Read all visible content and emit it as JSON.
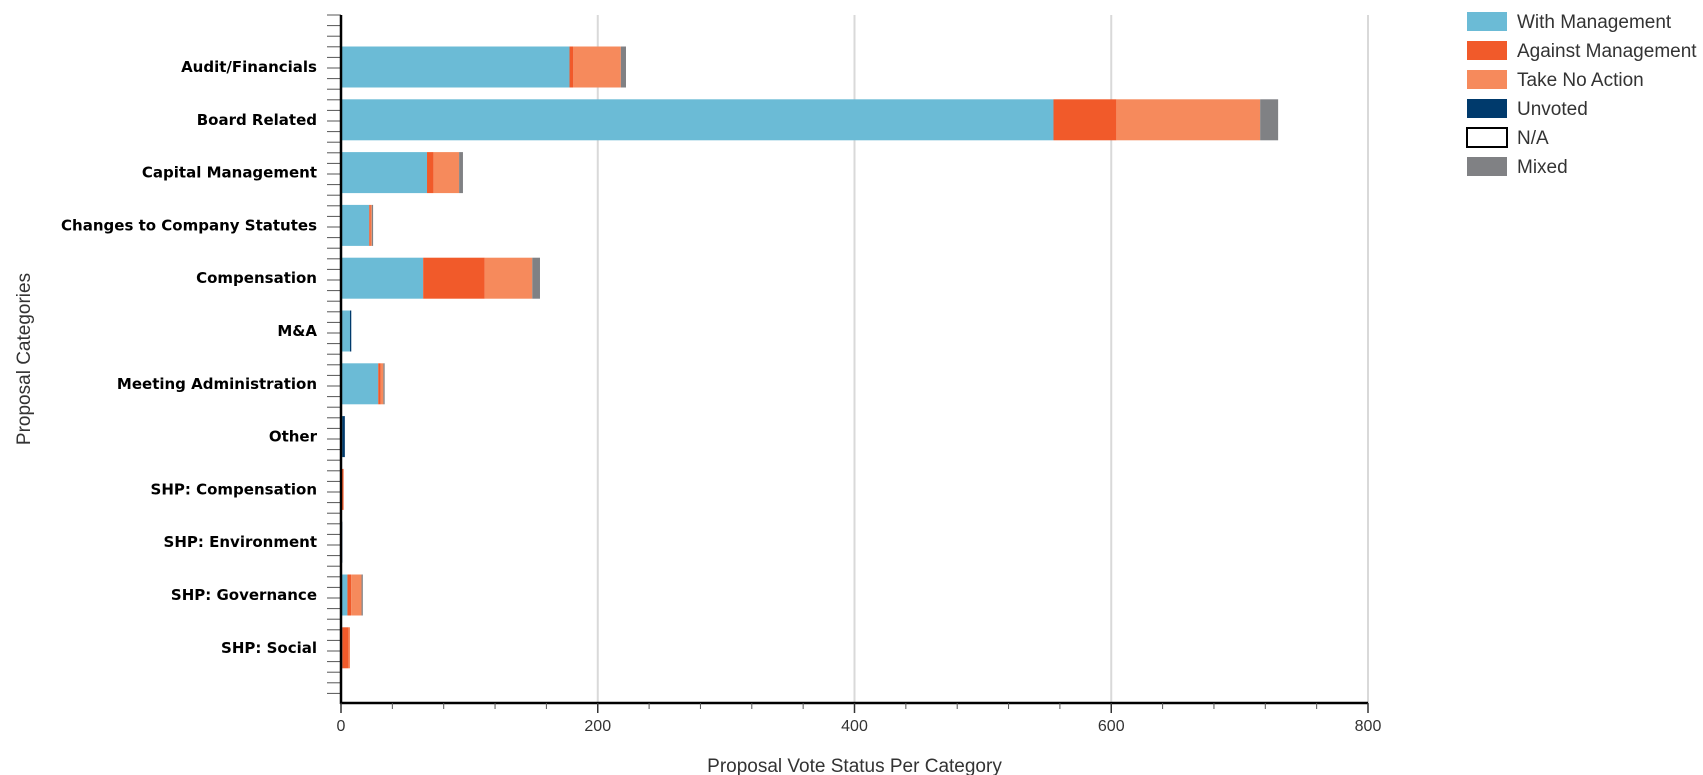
{
  "chart_data": {
    "type": "bar",
    "orientation": "horizontal",
    "stacked": true,
    "categories": [
      "Audit/Financials",
      "Board Related",
      "Capital Management",
      "Changes to Company Statutes",
      "Compensation",
      "M&A",
      "Meeting Administration",
      "Other",
      "SHP: Compensation",
      "SHP: Environment",
      "SHP: Governance",
      "SHP: Social"
    ],
    "series": [
      {
        "name": "With Management",
        "color": "#6bbbd6",
        "values": [
          178,
          555,
          67,
          22,
          64,
          7,
          29,
          1,
          0,
          0,
          5,
          1
        ]
      },
      {
        "name": "Against Management",
        "color": "#f15a2a",
        "values": [
          3,
          49,
          5,
          1,
          48,
          0,
          2,
          0,
          2,
          0,
          3,
          5
        ]
      },
      {
        "name": "Take No Action",
        "color": "#f68a5c",
        "values": [
          37,
          112,
          20,
          1,
          37,
          0,
          2,
          0,
          0,
          0,
          8,
          1
        ]
      },
      {
        "name": "Unvoted",
        "color": "#003a6c",
        "values": [
          0,
          0,
          0,
          0,
          0,
          1,
          0,
          2,
          0,
          1,
          0,
          0
        ]
      },
      {
        "name": "N/A",
        "color": "#ffffff",
        "values": [
          0,
          0,
          0,
          0,
          0,
          0,
          0,
          0,
          0,
          0,
          0,
          0
        ]
      },
      {
        "name": "Mixed",
        "color": "#808184",
        "values": [
          4,
          14,
          3,
          1,
          6,
          0,
          1,
          0,
          0,
          0,
          1,
          0
        ]
      }
    ],
    "xlabel": "Proposal Vote Status Per Category",
    "ylabel": "Proposal Categories",
    "xlim": [
      0,
      800
    ],
    "xticks": [
      0,
      200,
      400,
      600,
      800
    ],
    "grid": "vertical",
    "legend": "top-right"
  }
}
